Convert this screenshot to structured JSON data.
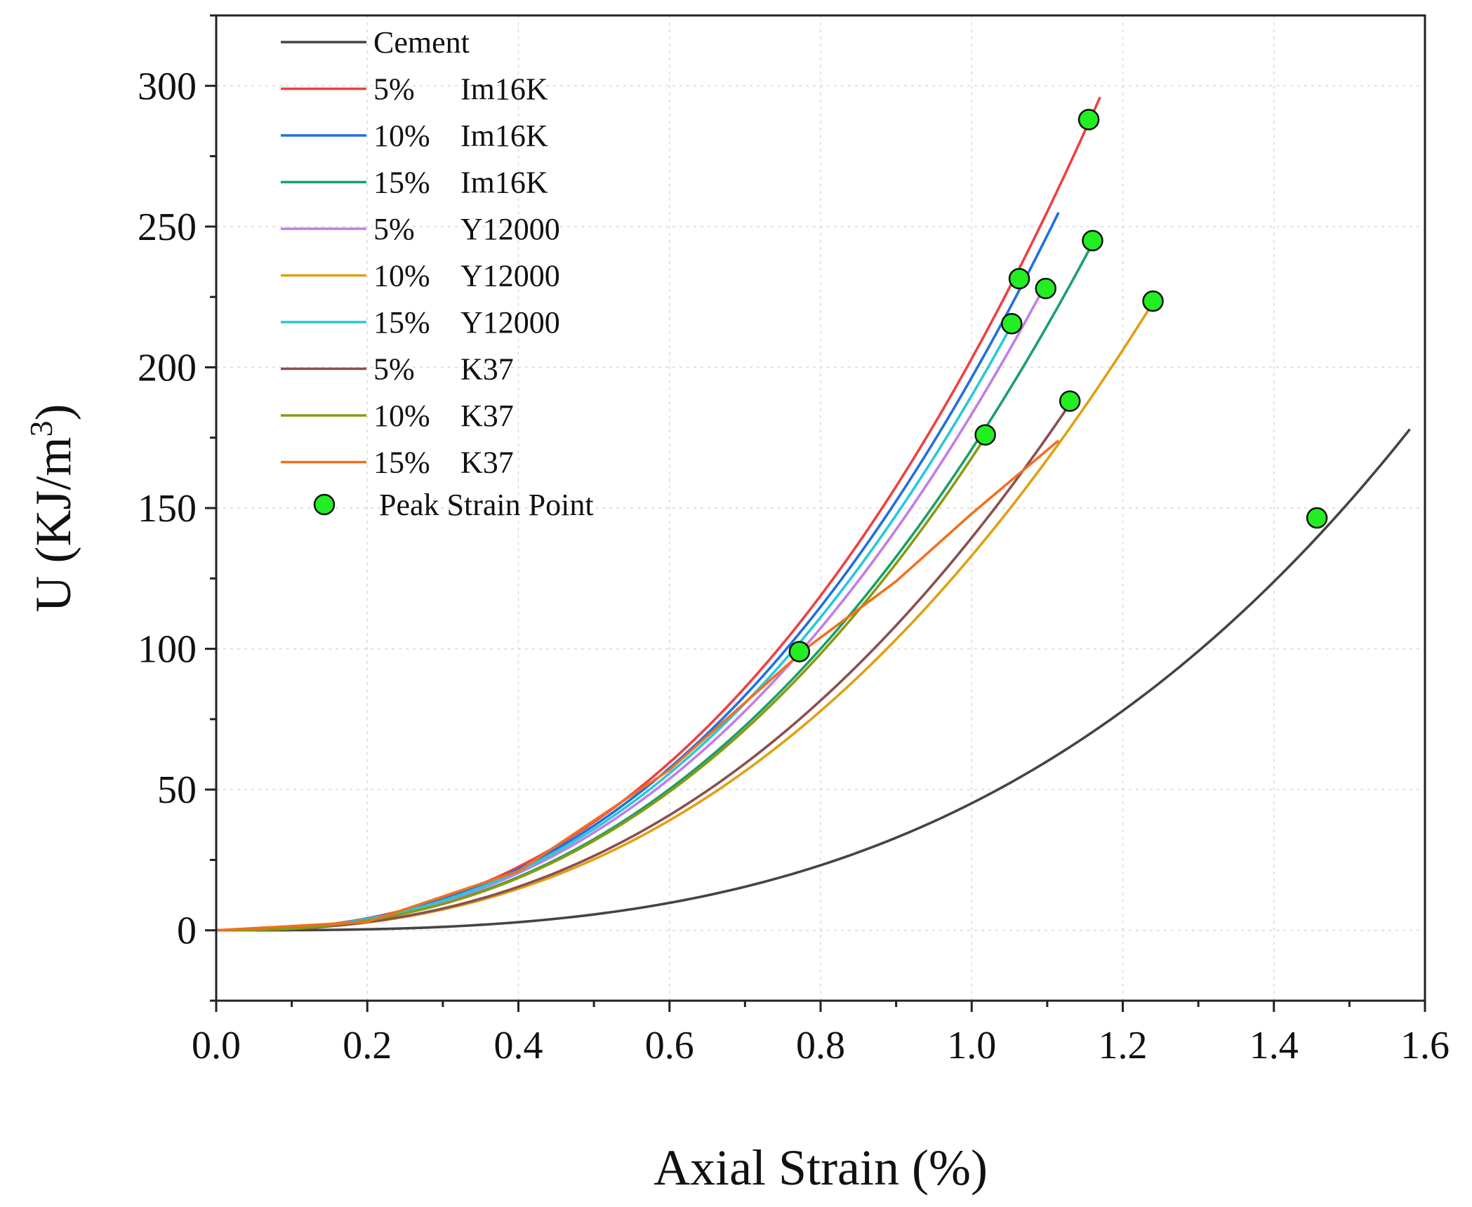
{
  "chart_data": {
    "type": "line",
    "title": "",
    "xlabel": "Axial Strain (%)",
    "ylabel_main": "U (KJ/m",
    "ylabel_sup": "3",
    "ylabel_close": ")",
    "xlim": [
      0,
      1.6
    ],
    "ylim": [
      -25,
      325
    ],
    "xticks": [
      0.0,
      0.2,
      0.4,
      0.6,
      0.8,
      1.0,
      1.2,
      1.4,
      1.6
    ],
    "xtick_labels": [
      "0.0",
      "0.2",
      "0.4",
      "0.6",
      "0.8",
      "1.0",
      "1.2",
      "1.4",
      "1.6"
    ],
    "yticks": [
      0,
      50,
      100,
      150,
      200,
      250,
      300
    ],
    "ytick_labels": [
      "0",
      "50",
      "100",
      "150",
      "200",
      "250",
      "300"
    ],
    "grid": true,
    "legend_position": "top-left",
    "series": [
      {
        "name": "Cement",
        "name_pct": "",
        "name_mat": "Cement",
        "color": "#444444",
        "x_end": 1.58,
        "y_end": 178,
        "power": 3.0
      },
      {
        "name": "5% Im16K",
        "name_pct": "5%",
        "name_mat": "Im16K",
        "color": "#f04040",
        "x_end": 1.17,
        "y_end": 296,
        "power": 2.4
      },
      {
        "name": "10% Im16K",
        "name_pct": "10%",
        "name_mat": "Im16K",
        "color": "#1f6fe0",
        "x_end": 1.115,
        "y_end": 255,
        "power": 2.4
      },
      {
        "name": "15% Im16K",
        "name_pct": "15%",
        "name_mat": "Im16K",
        "color": "#1aa06a",
        "x_end": 1.16,
        "y_end": 244,
        "power": 2.4
      },
      {
        "name": "5% Y12000",
        "name_pct": "5%",
        "name_mat": "Y12000",
        "color": "#c27de6",
        "x_end": 1.095,
        "y_end": 228,
        "power": 2.4
      },
      {
        "name": "10% Y12000",
        "name_pct": "10%",
        "name_mat": "Y12000",
        "color": "#e0a010",
        "x_end": 1.24,
        "y_end": 223,
        "power": 2.4
      },
      {
        "name": "15% Y12000",
        "name_pct": "15%",
        "name_mat": "Y12000",
        "color": "#28c8d6",
        "x_end": 1.055,
        "y_end": 216,
        "power": 2.4
      },
      {
        "name": "5% K37",
        "name_pct": "5%",
        "name_mat": "K37",
        "color": "#8a4f4f",
        "x_end": 1.13,
        "y_end": 187,
        "power": 2.4
      },
      {
        "name": "10% K37",
        "name_pct": "10%",
        "name_mat": "K37",
        "color": "#8a9a10",
        "x_end": 1.02,
        "y_end": 176,
        "power": 2.4
      },
      {
        "name": "15% K37",
        "name_pct": "15%",
        "name_mat": "K37",
        "color": "#f07020",
        "x_end": 1.115,
        "y_end": 174,
        "power": 2.4
      }
    ],
    "k37_15_points": [
      [
        0,
        0
      ],
      [
        0.2,
        3
      ],
      [
        0.4,
        21
      ],
      [
        0.6,
        57
      ],
      [
        0.78,
        100
      ],
      [
        0.9,
        124
      ],
      [
        1.0,
        148
      ],
      [
        1.115,
        174
      ]
    ],
    "peak_points": {
      "name": "Peak Strain Point",
      "color": "#22ee22",
      "points": [
        [
          1.155,
          288
        ],
        [
          1.063,
          231.5
        ],
        [
          1.16,
          245
        ],
        [
          1.098,
          228
        ],
        [
          1.24,
          223.5
        ],
        [
          1.053,
          215.5
        ],
        [
          1.13,
          188
        ],
        [
          1.018,
          176
        ],
        [
          0.772,
          99
        ],
        [
          1.457,
          146.5
        ]
      ]
    }
  }
}
